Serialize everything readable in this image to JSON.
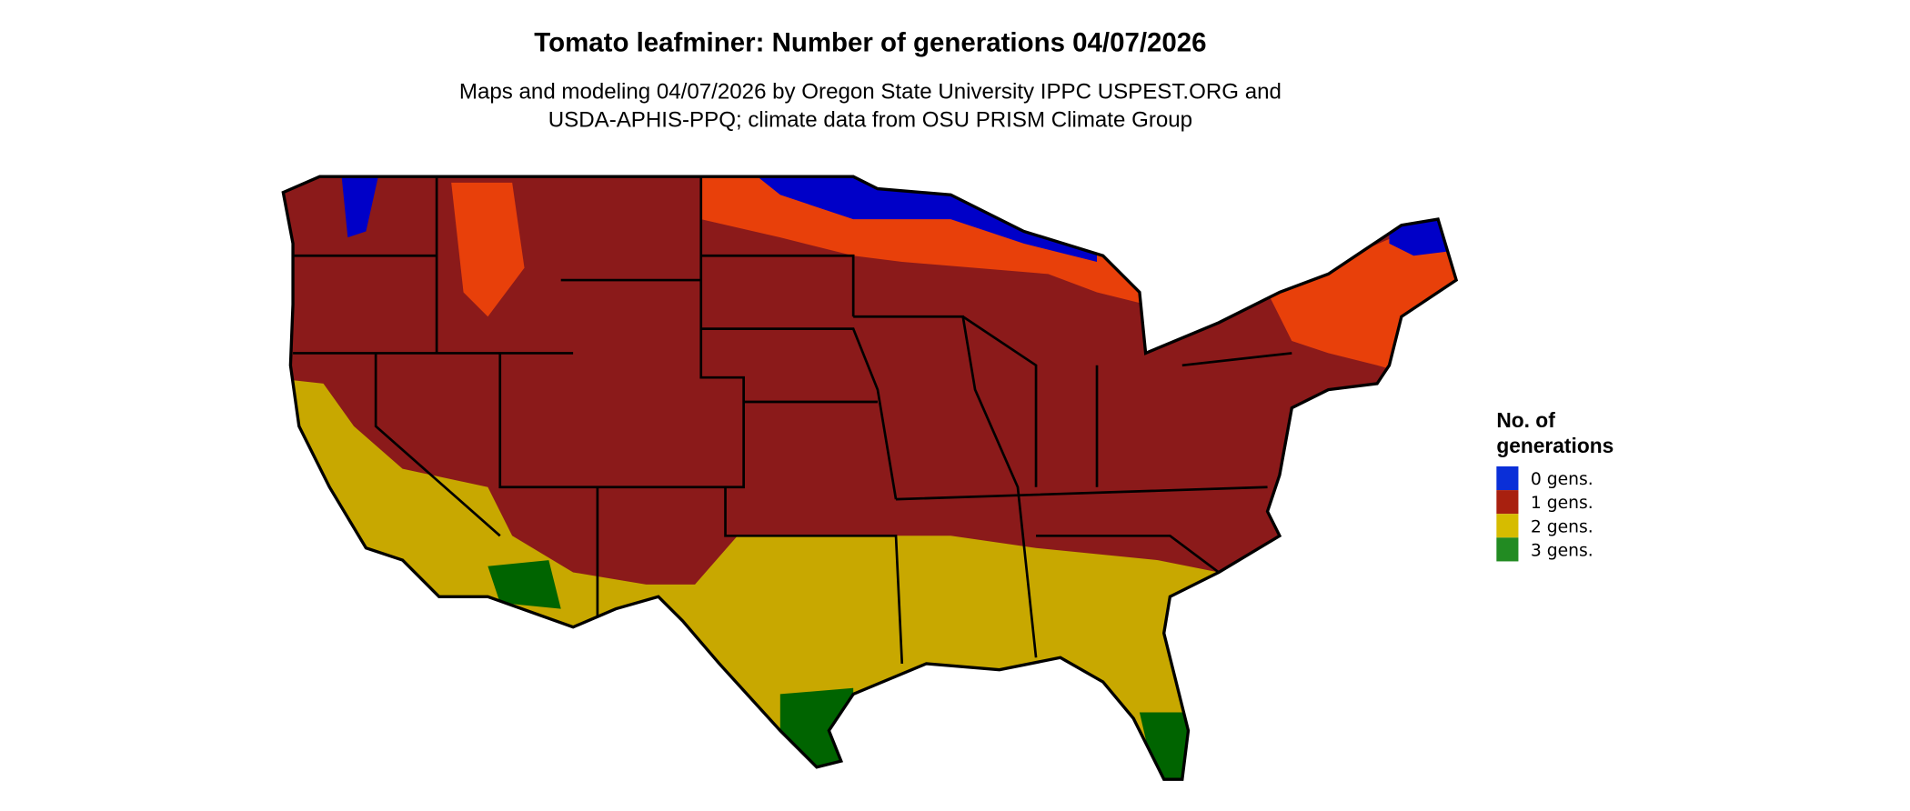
{
  "title": "Tomato leafminer: Number of generations 04/07/2026",
  "subtitle_line1": "Maps and modeling 04/07/2026 by Oregon State University IPPC USPEST.ORG and",
  "subtitle_line2": "USDA-APHIS-PPQ; climate data from OSU PRISM Climate Group",
  "legend": {
    "title_line1": "No. of",
    "title_line2": "generations",
    "items": [
      {
        "label": "0 gens.",
        "color": "#0a2fd8"
      },
      {
        "label": "1 gens.",
        "color": "#a8200f"
      },
      {
        "label": "2 gens.",
        "color": "#d6bc00"
      },
      {
        "label": "3 gens.",
        "color": "#228b22"
      }
    ]
  },
  "map_colors": {
    "zero": "#0000c8",
    "one": "#8b1a1a",
    "one_late": "#e8400a",
    "two": "#c8a800",
    "three": "#006400"
  }
}
